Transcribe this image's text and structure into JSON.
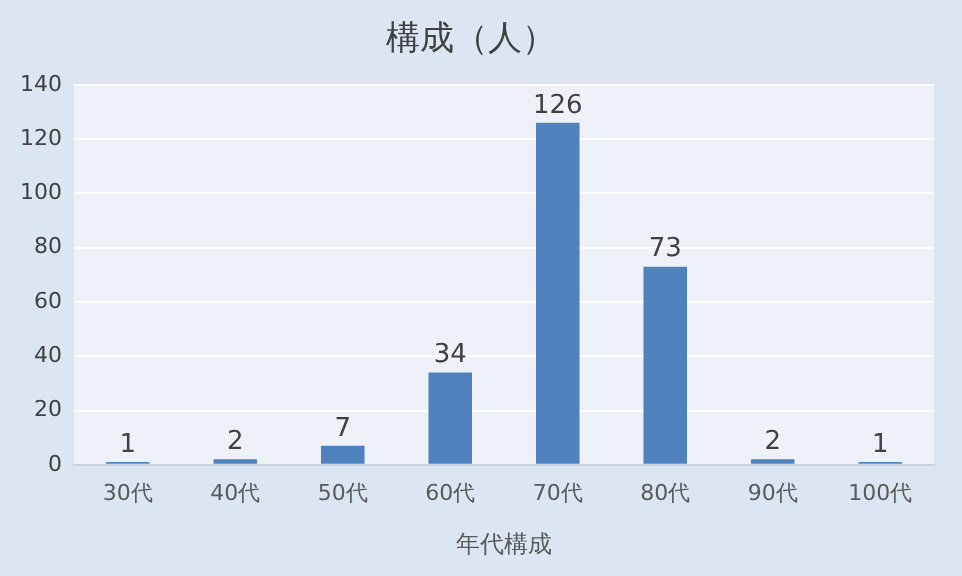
{
  "chart_data": {
    "type": "bar",
    "title": "構成（人）",
    "xlabel": "年代構成",
    "categories": [
      "30代",
      "40代",
      "50代",
      "60代",
      "70代",
      "80代",
      "90代",
      "100代"
    ],
    "values": [
      1,
      2,
      7,
      34,
      126,
      73,
      2,
      1
    ],
    "color": "#4f81bd",
    "ylim": [
      0,
      140
    ],
    "yticks": [
      0,
      20,
      40,
      60,
      80,
      100,
      120,
      140
    ],
    "grid": "y",
    "data_labels": true
  }
}
